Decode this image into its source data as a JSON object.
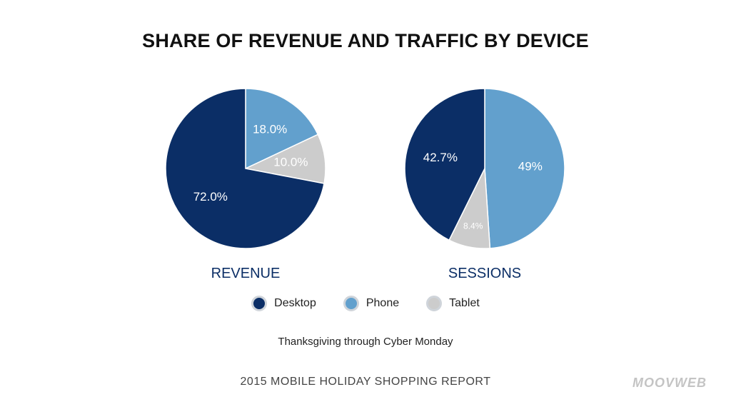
{
  "header": {
    "title": "SHARE OF REVENUE AND TRAFFIC BY DEVICE"
  },
  "colors": {
    "Desktop": "#0b2e66",
    "Phone": "#62a0cd",
    "Tablet": "#cccccc"
  },
  "chart_data": [
    {
      "type": "pie",
      "title": "REVENUE",
      "slices": [
        {
          "name": "Phone",
          "value": 18.0,
          "label": "18.0%"
        },
        {
          "name": "Tablet",
          "value": 10.0,
          "label": "10.0%"
        },
        {
          "name": "Desktop",
          "value": 72.0,
          "label": "72.0%"
        }
      ]
    },
    {
      "type": "pie",
      "title": "SESSIONS",
      "slices": [
        {
          "name": "Phone",
          "value": 49,
          "label": "49%"
        },
        {
          "name": "Tablet",
          "value": 8.4,
          "label": "8.4%"
        },
        {
          "name": "Desktop",
          "value": 42.7,
          "label": "42.7%"
        }
      ]
    }
  ],
  "legend": [
    {
      "name": "Desktop",
      "label": "Desktop"
    },
    {
      "name": "Phone",
      "label": "Phone"
    },
    {
      "name": "Tablet",
      "label": "Tablet"
    }
  ],
  "note": "Thanksgiving through Cyber Monday",
  "footer": "2015 MOBILE HOLIDAY SHOPPING REPORT",
  "logo": "MOOVWEB"
}
